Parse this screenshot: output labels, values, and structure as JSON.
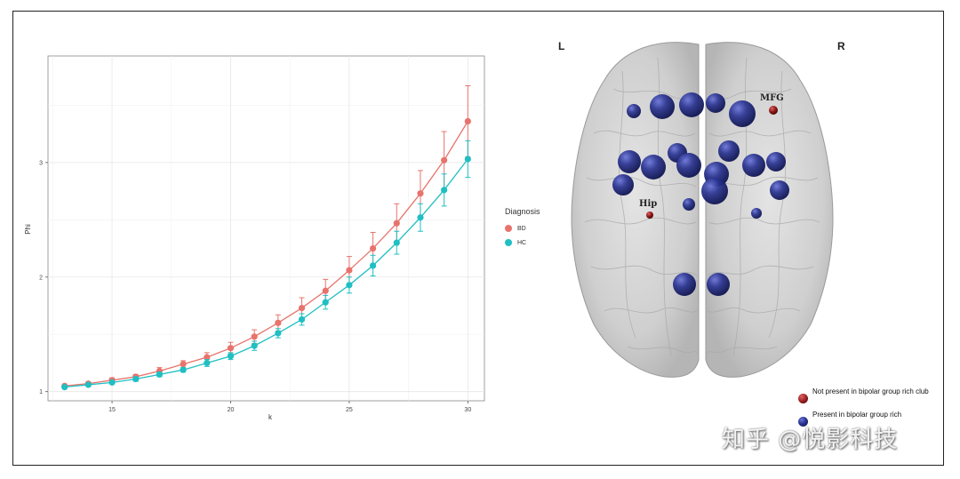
{
  "chart_data": {
    "type": "line",
    "title": "",
    "xlabel": "k",
    "ylabel": "Phi",
    "xlim": [
      12.3,
      30.7
    ],
    "ylim": [
      0.92,
      3.93
    ],
    "xticks": [
      15,
      20,
      25,
      30
    ],
    "yticks": [
      1,
      2,
      3
    ],
    "grid": true,
    "legend_title": "Diagnosis",
    "legend_position": "right",
    "x": [
      13,
      14,
      15,
      16,
      17,
      18,
      19,
      20,
      21,
      22,
      23,
      24,
      25,
      26,
      27,
      28,
      29,
      30
    ],
    "series": [
      {
        "name": "BD",
        "color": "#E8736C",
        "values": [
          1.05,
          1.07,
          1.1,
          1.13,
          1.18,
          1.24,
          1.3,
          1.38,
          1.48,
          1.6,
          1.73,
          1.88,
          2.06,
          2.25,
          2.47,
          2.73,
          3.02,
          3.36
        ],
        "errors": [
          0.01,
          0.01,
          0.02,
          0.02,
          0.03,
          0.03,
          0.04,
          0.05,
          0.06,
          0.07,
          0.09,
          0.1,
          0.12,
          0.14,
          0.17,
          0.2,
          0.25,
          0.31
        ]
      },
      {
        "name": "HC",
        "color": "#1FBFC3",
        "values": [
          1.04,
          1.06,
          1.08,
          1.11,
          1.15,
          1.19,
          1.25,
          1.31,
          1.4,
          1.51,
          1.63,
          1.78,
          1.93,
          2.1,
          2.3,
          2.52,
          2.76,
          3.03
        ],
        "errors": [
          0.01,
          0.01,
          0.01,
          0.02,
          0.02,
          0.02,
          0.03,
          0.03,
          0.04,
          0.04,
          0.05,
          0.06,
          0.07,
          0.09,
          0.1,
          0.12,
          0.14,
          0.16
        ]
      }
    ]
  },
  "brain": {
    "left_label": "L",
    "right_label": "R",
    "mfg_label": "MFG",
    "hip_label": "Hip",
    "legend_red": "Not present in bipolar group rich club",
    "legend_blue": "Present in bipolar group rich",
    "red_color": "#A31E1E",
    "blue_color": "#1F2A80"
  },
  "watermark": "知乎 @悦影科技"
}
